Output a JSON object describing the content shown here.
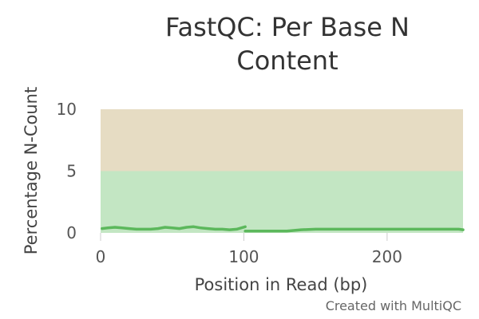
{
  "chart_data": {
    "type": "line",
    "title_lines": [
      "FastQC: Per Base N",
      "Content"
    ],
    "xlabel": "Position in Read (bp)",
    "ylabel": "Percentage N-Count",
    "xlim": [
      0,
      253
    ],
    "ylim": [
      0,
      10
    ],
    "x_ticks": [
      "0",
      "100",
      "200"
    ],
    "y_ticks": [
      "0",
      "5",
      "10"
    ],
    "grid": false,
    "legend": "none",
    "bands": [
      {
        "from": 0,
        "to": 5,
        "color": "#c3e6c3"
      },
      {
        "from": 5,
        "to": 10,
        "color": "#e6dcc3"
      }
    ],
    "series": [
      {
        "color": "#5cb85c",
        "x": [
          1,
          5,
          10,
          15,
          20,
          25,
          30,
          35,
          40,
          45,
          50,
          55,
          60,
          65,
          70,
          75,
          80,
          85,
          90,
          95,
          101
        ],
        "y": [
          0.35,
          0.4,
          0.45,
          0.4,
          0.35,
          0.3,
          0.3,
          0.3,
          0.35,
          0.45,
          0.4,
          0.35,
          0.45,
          0.5,
          0.4,
          0.35,
          0.3,
          0.3,
          0.25,
          0.3,
          0.5
        ]
      },
      {
        "color": "#5cb85c",
        "x": [
          101,
          110,
          120,
          130,
          140,
          150,
          160,
          170,
          180,
          190,
          200,
          210,
          220,
          230,
          240,
          250,
          253
        ],
        "y": [
          0.15,
          0.15,
          0.15,
          0.15,
          0.25,
          0.3,
          0.3,
          0.3,
          0.3,
          0.3,
          0.3,
          0.3,
          0.3,
          0.3,
          0.3,
          0.3,
          0.25
        ]
      }
    ]
  },
  "footer": {
    "credit": "Created with MultiQC"
  }
}
